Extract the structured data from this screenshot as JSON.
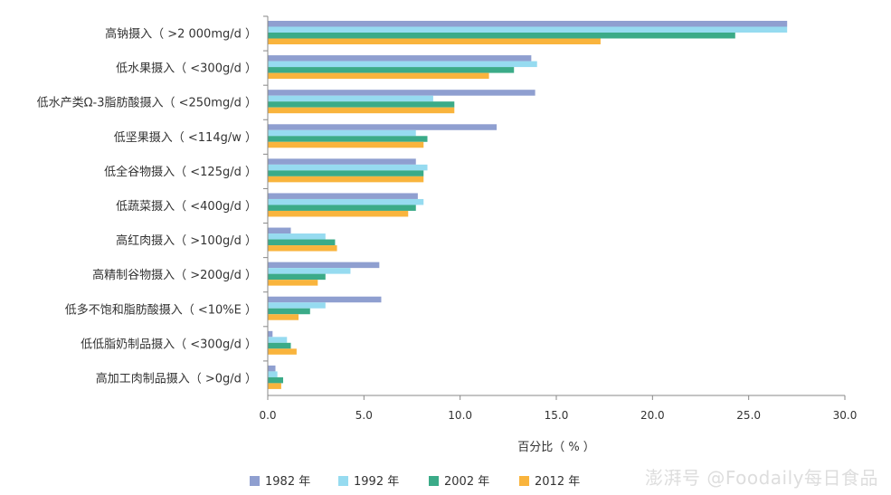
{
  "chart_data": {
    "type": "bar",
    "orientation": "horizontal",
    "categories": [
      "高钠摄入（ >2 000mg/d ）",
      "低水果摄入（ <300g/d ）",
      "低水产类Ω-3脂肪酸摄入（ <250mg/d ）",
      "低坚果摄入（ <114g/w ）",
      "低全谷物摄入（ <125g/d ）",
      "低蔬菜摄入（ <400g/d ）",
      "高红肉摄入（ >100g/d ）",
      "高精制谷物摄入（ >200g/d ）",
      "低多不饱和脂肪酸摄入（ <10%E ）",
      "低低脂奶制品摄入（ <300g/d ）",
      "高加工肉制品摄入（ >0g/d ）"
    ],
    "series": [
      {
        "name": "1982 年",
        "color": "#8f9fd0",
        "values": [
          27.0,
          13.7,
          13.9,
          11.9,
          7.7,
          7.8,
          1.2,
          5.8,
          5.9,
          0.25,
          0.4
        ]
      },
      {
        "name": "1992 年",
        "color": "#96dbf0",
        "values": [
          27.0,
          14.0,
          8.6,
          7.7,
          8.3,
          8.1,
          3.0,
          4.3,
          3.0,
          1.0,
          0.5
        ]
      },
      {
        "name": "2002 年",
        "color": "#3bab88",
        "values": [
          24.3,
          12.8,
          9.7,
          8.3,
          8.1,
          7.7,
          3.5,
          3.0,
          2.2,
          1.2,
          0.8
        ]
      },
      {
        "name": "2012 年",
        "color": "#f9b43d",
        "values": [
          17.3,
          11.5,
          9.7,
          8.1,
          8.1,
          7.3,
          3.6,
          2.6,
          1.6,
          1.5,
          0.7
        ]
      }
    ],
    "xlabel": "百分比（ % ）",
    "xlim": [
      0,
      30
    ],
    "xticks": [
      "0.0",
      "5.0",
      "10.0",
      "15.0",
      "20.0",
      "25.0",
      "30.0"
    ],
    "grid": false,
    "legend_position": "bottom"
  },
  "watermark": "澎湃号 @Foodaily每日食品"
}
